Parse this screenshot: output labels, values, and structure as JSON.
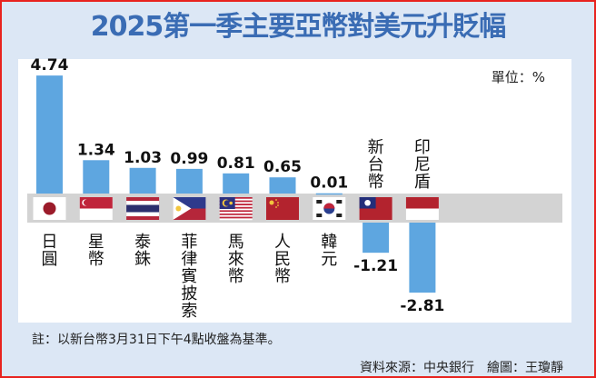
{
  "title": "2025第一季主要亞幣對美元升貶幅",
  "unit_label": "單位：%",
  "note": "註：以新台幣3月31日下午4點收盤為基準。",
  "source": "資料來源：中央銀行　繪圖：王瓊靜",
  "colors": {
    "bar": "#5ea6e0",
    "title": "#3a6cb4",
    "band": "#d3d3d3",
    "border": "#e8231f",
    "background": "#dce7f5"
  },
  "chart_data": {
    "type": "bar",
    "title": "2025第一季主要亞幣對美元升貶幅",
    "ylabel": "單位：%",
    "categories": [
      "日圓",
      "星幣",
      "泰銖",
      "菲律賓披索",
      "馬來幣",
      "人民幣",
      "韓元",
      "新台幣",
      "印尼盾"
    ],
    "flags": [
      "japan",
      "singapore",
      "thailand",
      "philippines",
      "malaysia",
      "china",
      "south-korea",
      "taiwan",
      "indonesia"
    ],
    "values": [
      4.74,
      1.34,
      1.03,
      0.99,
      0.81,
      0.65,
      0.01,
      -1.21,
      -2.81
    ],
    "value_labels": [
      "4.74",
      "1.34",
      "1.03",
      "0.99",
      "0.81",
      "0.65",
      "0.01",
      "-1.21",
      "-2.81"
    ],
    "grid": false
  }
}
